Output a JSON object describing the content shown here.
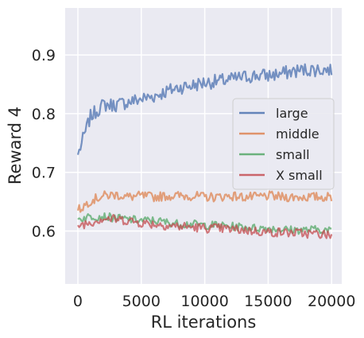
{
  "chart_data": {
    "type": "line",
    "xlabel": "RL iterations",
    "ylabel": "Reward 4",
    "xlim": [
      -1000,
      20800
    ],
    "ylim": [
      0.51,
      0.98
    ],
    "xticks": [
      0,
      5000,
      10000,
      15000,
      20000
    ],
    "yticks": [
      0.6,
      0.7,
      0.8,
      0.9
    ],
    "xtick_labels": [
      "0",
      "5000",
      "10000",
      "15000",
      "20000"
    ],
    "ytick_labels": [
      "0.6",
      "0.7",
      "0.8",
      "0.9"
    ],
    "grid": true,
    "legend_position": "center-right",
    "x": [
      0,
      1000,
      2000,
      3000,
      4000,
      5000,
      6000,
      7000,
      8000,
      9000,
      10000,
      11000,
      12000,
      13000,
      14000,
      15000,
      16000,
      17000,
      18000,
      19000,
      20000
    ],
    "series": [
      {
        "name": "large",
        "color": "#4c72b0",
        "values": [
          0.73,
          0.795,
          0.815,
          0.815,
          0.82,
          0.825,
          0.83,
          0.838,
          0.845,
          0.848,
          0.853,
          0.855,
          0.858,
          0.862,
          0.865,
          0.865,
          0.868,
          0.872,
          0.875,
          0.875,
          0.875
        ]
      },
      {
        "name": "middle",
        "color": "#dd8452",
        "values": [
          0.635,
          0.652,
          0.66,
          0.662,
          0.658,
          0.66,
          0.658,
          0.66,
          0.66,
          0.66,
          0.658,
          0.658,
          0.66,
          0.658,
          0.658,
          0.66,
          0.658,
          0.658,
          0.658,
          0.658,
          0.658
        ]
      },
      {
        "name": "small",
        "color": "#55a868",
        "values": [
          0.62,
          0.625,
          0.625,
          0.622,
          0.62,
          0.618,
          0.618,
          0.615,
          0.612,
          0.612,
          0.61,
          0.61,
          0.608,
          0.607,
          0.605,
          0.605,
          0.603,
          0.602,
          0.602,
          0.603,
          0.6
        ]
      },
      {
        "name": "X small",
        "color": "#c44e52",
        "values": [
          0.61,
          0.615,
          0.622,
          0.62,
          0.618,
          0.614,
          0.612,
          0.61,
          0.608,
          0.607,
          0.605,
          0.605,
          0.603,
          0.602,
          0.6,
          0.598,
          0.598,
          0.597,
          0.596,
          0.595,
          0.593
        ]
      }
    ]
  }
}
